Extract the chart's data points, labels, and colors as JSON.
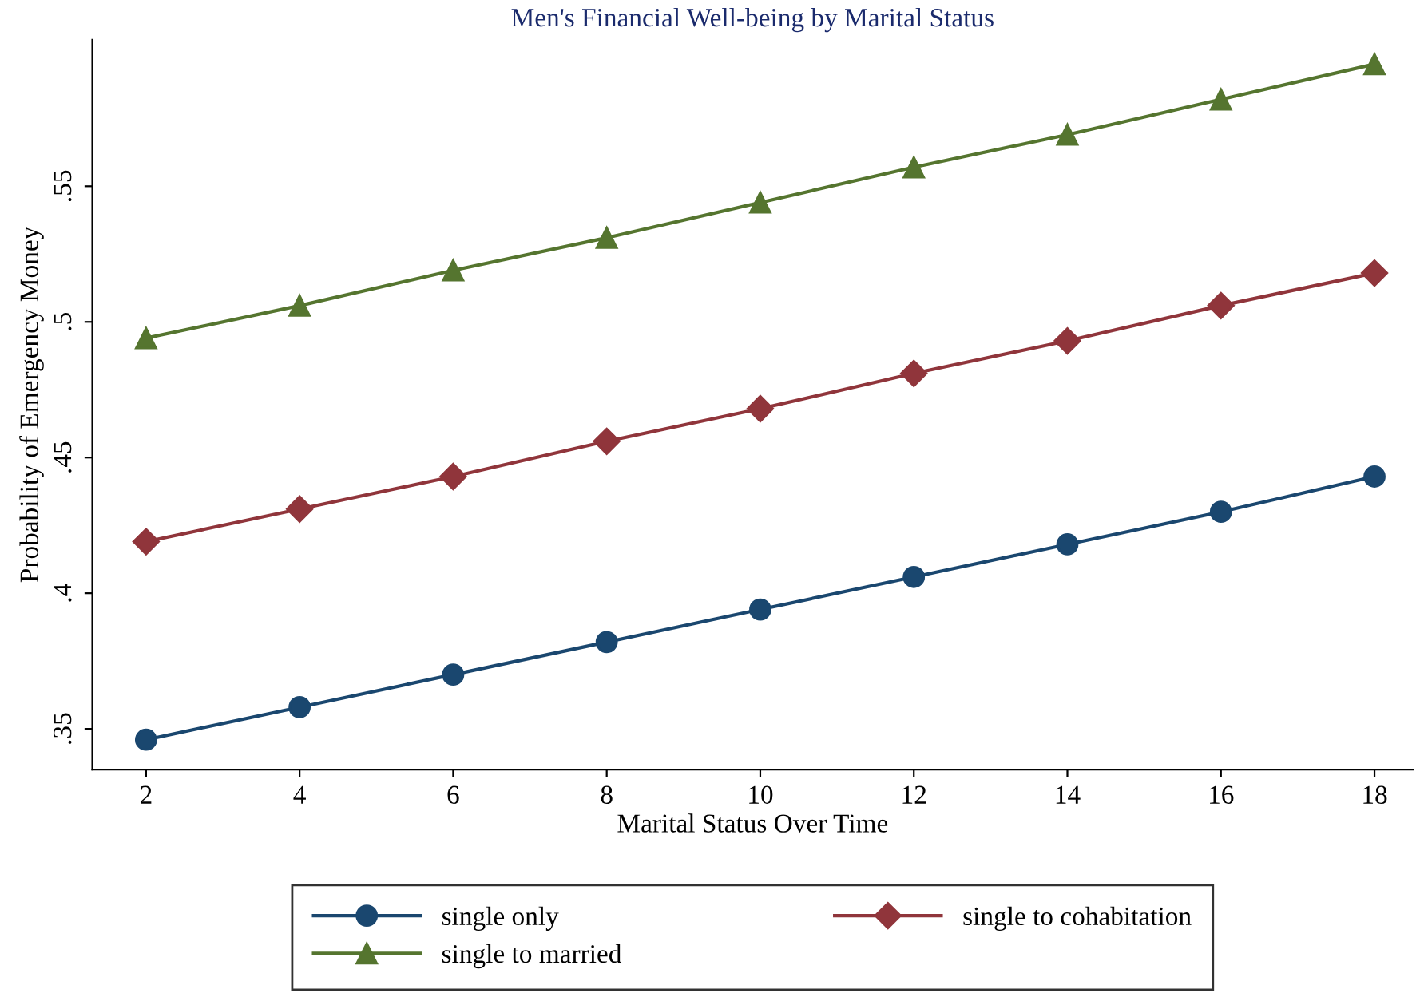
{
  "chart_data": {
    "type": "line",
    "title": "Men's Financial Well-being by Marital Status",
    "xlabel": "Marital Status Over Time",
    "ylabel": "Probability of Emergency Money",
    "x": [
      2,
      4,
      6,
      8,
      10,
      12,
      14,
      16,
      18
    ],
    "series": [
      {
        "name": "single only",
        "color": "#1a476f",
        "marker": "circle",
        "values": [
          0.346,
          0.358,
          0.37,
          0.382,
          0.394,
          0.406,
          0.418,
          0.43,
          0.443
        ]
      },
      {
        "name": "single to cohabitation",
        "color": "#90353b",
        "marker": "diamond",
        "values": [
          0.419,
          0.431,
          0.443,
          0.456,
          0.468,
          0.481,
          0.493,
          0.506,
          0.518
        ]
      },
      {
        "name": "single to married",
        "color": "#55752f",
        "marker": "triangle",
        "values": [
          0.494,
          0.506,
          0.519,
          0.531,
          0.544,
          0.557,
          0.569,
          0.582,
          0.595
        ]
      }
    ],
    "xlim": [
      1.3,
      18.5
    ],
    "xticks": [
      2,
      4,
      6,
      8,
      10,
      12,
      14,
      16,
      18
    ],
    "ylim": [
      0.335,
      0.604
    ],
    "yticks": [
      {
        "value": 0.35,
        "label": ".35"
      },
      {
        "value": 0.4,
        "label": ".4"
      },
      {
        "value": 0.45,
        "label": ".45"
      },
      {
        "value": 0.5,
        "label": ".5"
      },
      {
        "value": 0.55,
        "label": ".55"
      }
    ],
    "grid": false,
    "legend": "bottom",
    "line_style": "solid"
  }
}
